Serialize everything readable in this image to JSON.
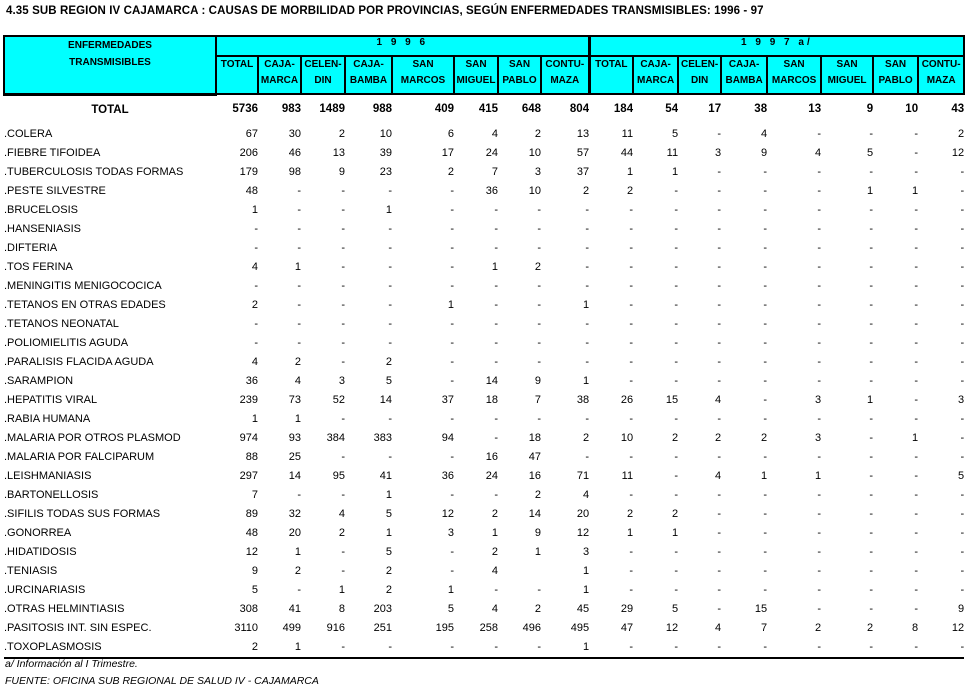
{
  "title": "4.35  SUB REGION IV CAJAMARCA : CAUSAS DE MORBILIDAD POR PROVINCIAS, SEGÚN ENFERMEDADES TRANSMISIBLES: 1996 -  97",
  "colors": {
    "header_bg": "#00FFFF",
    "border": "#000000",
    "text": "#000000",
    "page_bg": "#FFFFFF"
  },
  "table": {
    "row_header": [
      "ENFERMEDADES",
      "TRANSMISIBLES"
    ],
    "year_groups": [
      {
        "label": "1 9 9 6",
        "columns": [
          {
            "id": "total",
            "lines": [
              "TOTAL",
              ""
            ]
          },
          {
            "id": "cajamarca",
            "lines": [
              "CAJA-",
              "MARCA"
            ]
          },
          {
            "id": "celendin",
            "lines": [
              "CELEN-",
              "DIN"
            ]
          },
          {
            "id": "cajabamba",
            "lines": [
              "CAJA-",
              "BAMBA"
            ]
          },
          {
            "id": "san-marcos",
            "lines": [
              "SAN",
              "MARCOS"
            ]
          },
          {
            "id": "san-miguel",
            "lines": [
              "SAN",
              "MIGUEL"
            ]
          },
          {
            "id": "san-pablo",
            "lines": [
              "SAN",
              "PABLO"
            ]
          },
          {
            "id": "contumaza",
            "lines": [
              "CONTU-",
              "MAZA"
            ]
          }
        ]
      },
      {
        "label": "1 9 9 7  a/",
        "columns": [
          {
            "id": "total",
            "lines": [
              "TOTAL",
              ""
            ]
          },
          {
            "id": "cajamarca",
            "lines": [
              "CAJA-",
              "MARCA"
            ]
          },
          {
            "id": "celendin",
            "lines": [
              "CELEN-",
              "DIN"
            ]
          },
          {
            "id": "cajabamba",
            "lines": [
              "CAJA-",
              "BAMBA"
            ]
          },
          {
            "id": "san-marcos",
            "lines": [
              "SAN",
              "MARCOS"
            ]
          },
          {
            "id": "san-miguel",
            "lines": [
              "SAN",
              "MIGUEL"
            ]
          },
          {
            "id": "san-pablo",
            "lines": [
              "SAN",
              "PABLO"
            ]
          },
          {
            "id": "contumaza",
            "lines": [
              "CONTU-",
              "MAZA"
            ]
          }
        ]
      }
    ],
    "total_row": {
      "label": "TOTAL",
      "values": [
        "5736",
        "983",
        "1489",
        "988",
        "409",
        "415",
        "648",
        "804",
        "184",
        "54",
        "17",
        "38",
        "13",
        "9",
        "10",
        "43"
      ]
    },
    "rows": [
      {
        "label": ".COLERA",
        "values": [
          "67",
          "30",
          "2",
          "10",
          "6",
          "4",
          "2",
          "13",
          "11",
          "5",
          "-",
          "4",
          "-",
          "-",
          "-",
          "2"
        ]
      },
      {
        "label": ".FIEBRE TIFOIDEA",
        "values": [
          "206",
          "46",
          "13",
          "39",
          "17",
          "24",
          "10",
          "57",
          "44",
          "11",
          "3",
          "9",
          "4",
          "5",
          "-",
          "12"
        ]
      },
      {
        "label": ".TUBERCULOSIS TODAS FORMAS",
        "values": [
          "179",
          "98",
          "9",
          "23",
          "2",
          "7",
          "3",
          "37",
          "1",
          "1",
          "-",
          "-",
          "-",
          "-",
          "-",
          "-"
        ]
      },
      {
        "label": ".PESTE SILVESTRE",
        "values": [
          "48",
          "-",
          "-",
          "-",
          "-",
          "36",
          "10",
          "2",
          "2",
          "-",
          "-",
          "-",
          "-",
          "1",
          "1",
          "-"
        ]
      },
      {
        "label": ".BRUCELOSIS",
        "values": [
          "1",
          "-",
          "-",
          "1",
          "-",
          "-",
          "-",
          "-",
          "-",
          "-",
          "-",
          "-",
          "-",
          "-",
          "-",
          "-"
        ]
      },
      {
        "label": ".HANSENIASIS",
        "values": [
          "-",
          "-",
          "-",
          "-",
          "-",
          "-",
          "-",
          "-",
          "-",
          "-",
          "-",
          "-",
          "-",
          "-",
          "-",
          "-"
        ]
      },
      {
        "label": ".DIFTERIA",
        "values": [
          "-",
          "-",
          "-",
          "-",
          "-",
          "-",
          "-",
          "-",
          "-",
          "-",
          "-",
          "-",
          "-",
          "-",
          "-",
          "-"
        ]
      },
      {
        "label": ".TOS FERINA",
        "values": [
          "4",
          "1",
          "-",
          "-",
          "-",
          "1",
          "2",
          "-",
          "-",
          "-",
          "-",
          "-",
          "-",
          "-",
          "-",
          "-"
        ]
      },
      {
        "label": ".MENINGITIS MENIGOCOCICA",
        "values": [
          "-",
          "-",
          "-",
          "-",
          "-",
          "-",
          "-",
          "-",
          "-",
          "-",
          "-",
          "-",
          "-",
          "-",
          "-",
          "-"
        ]
      },
      {
        "label": ".TETANOS EN OTRAS EDADES",
        "values": [
          "2",
          "-",
          "-",
          "-",
          "1",
          "-",
          "-",
          "1",
          "-",
          "-",
          "-",
          "-",
          "-",
          "-",
          "-",
          "-"
        ]
      },
      {
        "label": ".TETANOS NEONATAL",
        "values": [
          "-",
          "-",
          "-",
          "-",
          "-",
          "-",
          "-",
          "-",
          "-",
          "-",
          "-",
          "-",
          "-",
          "-",
          "-",
          "-"
        ]
      },
      {
        "label": ".POLIOMIELITIS AGUDA",
        "values": [
          "-",
          "-",
          "-",
          "-",
          "-",
          "-",
          "-",
          "-",
          "-",
          "-",
          "-",
          "-",
          "-",
          "-",
          "-",
          "-"
        ]
      },
      {
        "label": ".PARALISIS FLACIDA AGUDA",
        "values": [
          "4",
          "2",
          "-",
          "2",
          "-",
          "-",
          "-",
          "-",
          "-",
          "-",
          "-",
          "-",
          "-",
          "-",
          "-",
          "-"
        ]
      },
      {
        "label": ".SARAMPION",
        "values": [
          "36",
          "4",
          "3",
          "5",
          "-",
          "14",
          "9",
          "1",
          "-",
          "-",
          "-",
          "-",
          "-",
          "-",
          "-",
          "-"
        ]
      },
      {
        "label": ".HEPATITIS VIRAL",
        "values": [
          "239",
          "73",
          "52",
          "14",
          "37",
          "18",
          "7",
          "38",
          "26",
          "15",
          "4",
          "-",
          "3",
          "1",
          "-",
          "3"
        ]
      },
      {
        "label": ".RABIA HUMANA",
        "values": [
          "1",
          "1",
          "-",
          "-",
          "-",
          "-",
          "-",
          "-",
          "-",
          "-",
          "-",
          "-",
          "-",
          "-",
          "-",
          "-"
        ]
      },
      {
        "label": ".MALARIA POR OTROS PLASMOD",
        "values": [
          "974",
          "93",
          "384",
          "383",
          "94",
          "-",
          "18",
          "2",
          "10",
          "2",
          "2",
          "2",
          "3",
          "-",
          "1",
          "-"
        ]
      },
      {
        "label": ".MALARIA POR FALCIPARUM",
        "values": [
          "88",
          "25",
          "-",
          "-",
          "-",
          "16",
          "47",
          "-",
          "-",
          "-",
          "-",
          "-",
          "-",
          "-",
          "-",
          "-"
        ]
      },
      {
        "label": ".LEISHMANIASIS",
        "values": [
          "297",
          "14",
          "95",
          "41",
          "36",
          "24",
          "16",
          "71",
          "11",
          "-",
          "4",
          "1",
          "1",
          "-",
          "-",
          "5"
        ]
      },
      {
        "label": ".BARTONELLOSIS",
        "values": [
          "7",
          "-",
          "-",
          "1",
          "-",
          "-",
          "2",
          "4",
          "-",
          "-",
          "-",
          "-",
          "-",
          "-",
          "-",
          "-"
        ]
      },
      {
        "label": ".SIFILIS TODAS SUS FORMAS",
        "values": [
          "89",
          "32",
          "4",
          "5",
          "12",
          "2",
          "14",
          "20",
          "2",
          "2",
          "-",
          "-",
          "-",
          "-",
          "-",
          "-"
        ]
      },
      {
        "label": ".GONORREA",
        "values": [
          "48",
          "20",
          "2",
          "1",
          "3",
          "1",
          "9",
          "12",
          "1",
          "1",
          "-",
          "-",
          "-",
          "-",
          "-",
          "-"
        ]
      },
      {
        "label": ".HIDATIDOSIS",
        "values": [
          "12",
          "1",
          "-",
          "5",
          "-",
          "2",
          "1",
          "3",
          "-",
          "-",
          "-",
          "-",
          "-",
          "-",
          "-",
          "-"
        ]
      },
      {
        "label": ".TENIASIS",
        "values": [
          "9",
          "2",
          "-",
          "2",
          "-",
          "4",
          "",
          "1",
          "-",
          "-",
          "-",
          "-",
          "-",
          "-",
          "-",
          "-"
        ]
      },
      {
        "label": ".URCINARIASIS",
        "values": [
          "5",
          "-",
          "1",
          "2",
          "1",
          "-",
          "-",
          "1",
          "-",
          "-",
          "-",
          "-",
          "-",
          "-",
          "-",
          "-"
        ]
      },
      {
        "label": ".OTRAS HELMINTIASIS",
        "values": [
          "308",
          "41",
          "8",
          "203",
          "5",
          "4",
          "2",
          "45",
          "29",
          "5",
          "-",
          "15",
          "-",
          "-",
          "-",
          "9"
        ]
      },
      {
        "label": ".PASITOSIS INT. SIN ESPEC.",
        "values": [
          "3110",
          "499",
          "916",
          "251",
          "195",
          "258",
          "496",
          "495",
          "47",
          "12",
          "4",
          "7",
          "2",
          "2",
          "8",
          "12"
        ]
      },
      {
        "label": ".TOXOPLASMOSIS",
        "values": [
          "2",
          "1",
          "-",
          "-",
          "-",
          "-",
          "-",
          "1",
          "-",
          "-",
          "-",
          "-",
          "-",
          "-",
          "-",
          "-"
        ]
      }
    ]
  },
  "footnotes": {
    "trimester_note": "a/ Información al  I  Trimestre.",
    "source": "FUENTE: OFICINA SUB REGIONAL DE SALUD IV - CAJAMARCA"
  }
}
